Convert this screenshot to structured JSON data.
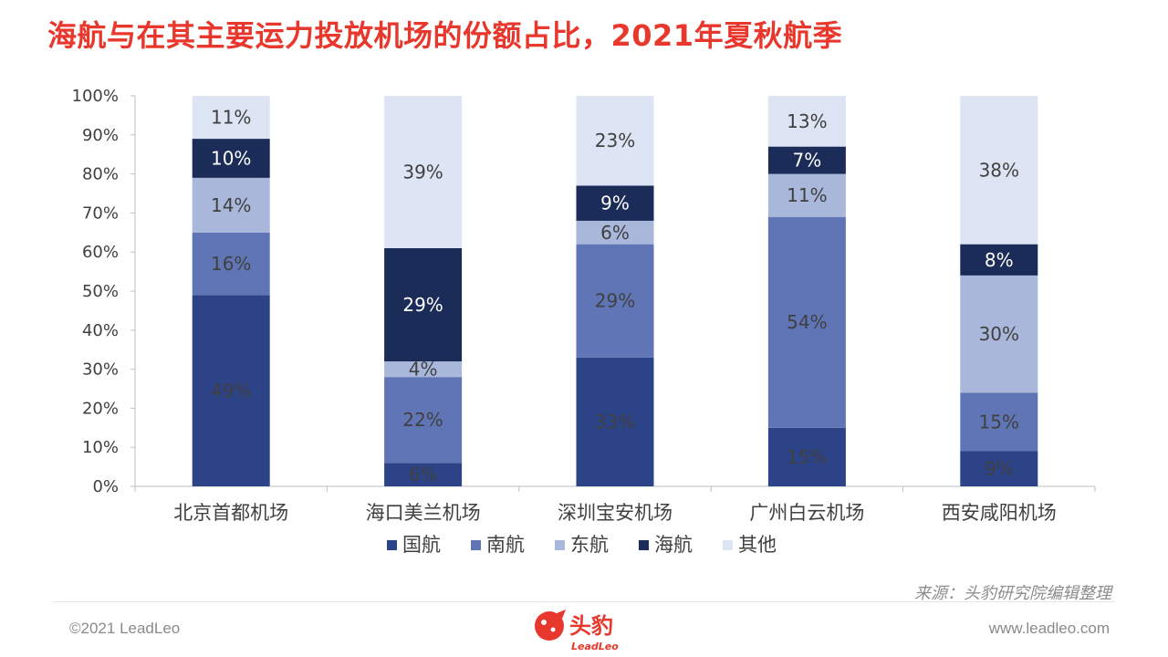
{
  "title": "海航与在其主要运力投放机场的份额占比，2021年夏秋航季",
  "source": "来源：头豹研究院编辑整理",
  "footer": {
    "copyright": "©2021 LeadLeo",
    "website": "www.leadleo.com",
    "logo_text": "头豹",
    "logo_subtext": "LeadLeo"
  },
  "colors": {
    "title": "#e8372c",
    "国航": "#2d4387",
    "南航": "#6075b5",
    "东航": "#a9b7db",
    "海航": "#1b2c58",
    "其他": "#dde4f3"
  },
  "chart_data": {
    "type": "bar",
    "stacked": true,
    "categories": [
      "北京首都机场",
      "海口美兰机场",
      "深圳宝安机场",
      "广州白云机场",
      "西安咸阳机场"
    ],
    "series": [
      {
        "name": "国航",
        "values": [
          49,
          6,
          33,
          15,
          9
        ]
      },
      {
        "name": "南航",
        "values": [
          16,
          22,
          29,
          54,
          15
        ]
      },
      {
        "name": "东航",
        "values": [
          14,
          4,
          6,
          11,
          30
        ]
      },
      {
        "name": "海航",
        "values": [
          10,
          29,
          9,
          7,
          8
        ]
      },
      {
        "name": "其他",
        "values": [
          11,
          39,
          23,
          13,
          38
        ]
      }
    ],
    "ylim": [
      0,
      100
    ],
    "yticks": [
      "0%",
      "10%",
      "20%",
      "30%",
      "40%",
      "50%",
      "60%",
      "70%",
      "80%",
      "90%",
      "100%"
    ],
    "label_suffix": "%",
    "legend_position": "bottom"
  }
}
